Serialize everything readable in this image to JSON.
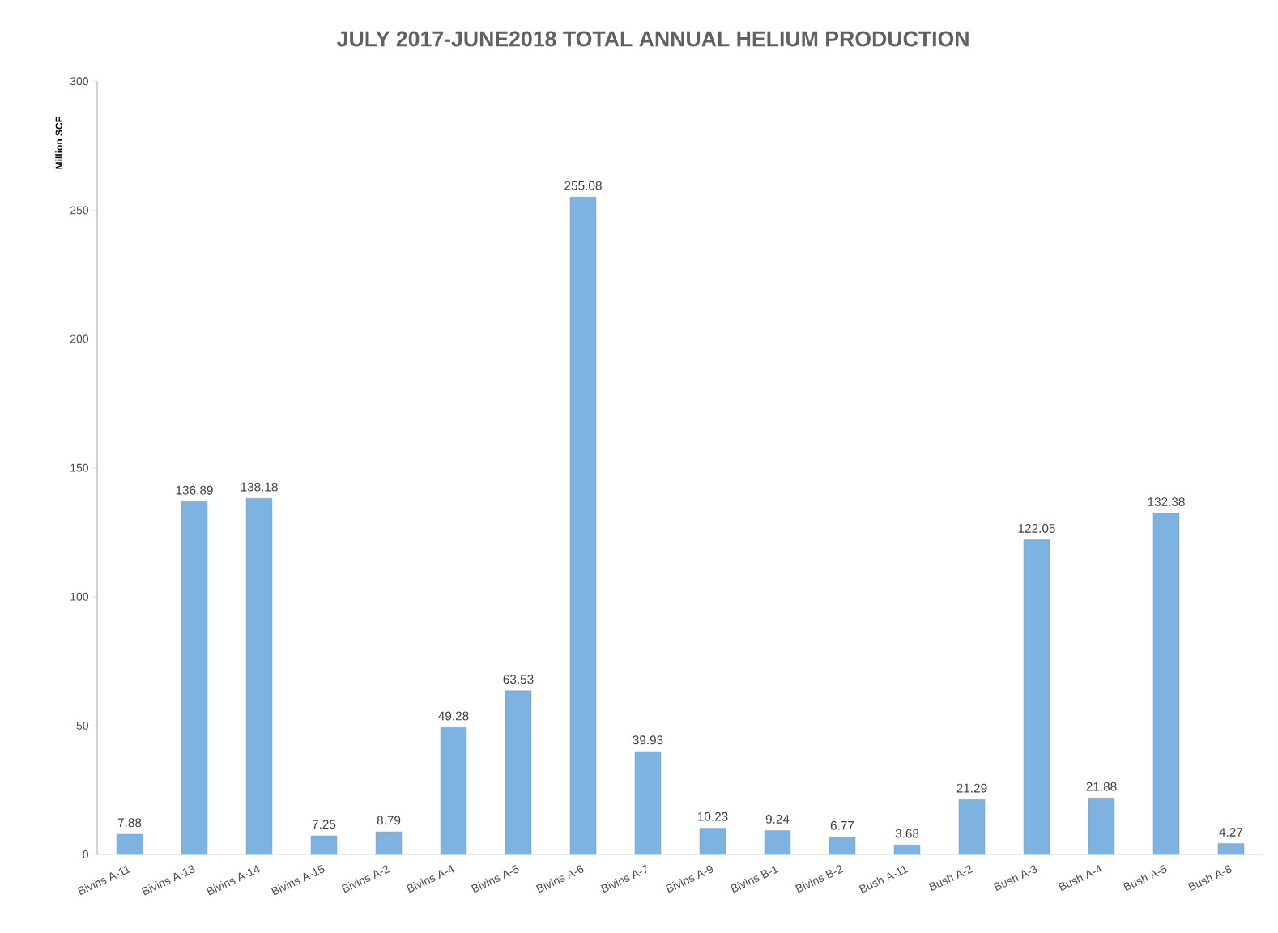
{
  "chart_data": {
    "type": "bar",
    "title": "JULY 2017-JUNE2018 TOTAL ANNUAL HELIUM PRODUCTION",
    "ylabel": "Million SCF",
    "categories": [
      "Bivins A-11",
      "Bivins A-13",
      "Bivins A-14",
      "Bivins A-15",
      "Bivins A-2",
      "Bivins A-4",
      "Bivins A-5",
      "Bivins A-6",
      "Bivins A-7",
      "Bivins A-9",
      "Bivins B-1",
      "Bivins B-2",
      "Bush A-11",
      "Bush A-2",
      "Bush A-3",
      "Bush A-4",
      "Bush A-5",
      "Bush A-8"
    ],
    "values": [
      7.88,
      136.89,
      138.18,
      7.25,
      8.79,
      49.28,
      63.53,
      255.08,
      39.93,
      10.23,
      9.24,
      6.77,
      3.68,
      21.29,
      122.05,
      21.88,
      132.38,
      4.27
    ],
    "color": "#7eb2e0",
    "ylim": [
      0,
      300
    ],
    "yticks": [
      0,
      50,
      100,
      150,
      200,
      250,
      300
    ],
    "data_labels": true,
    "grid": false
  }
}
